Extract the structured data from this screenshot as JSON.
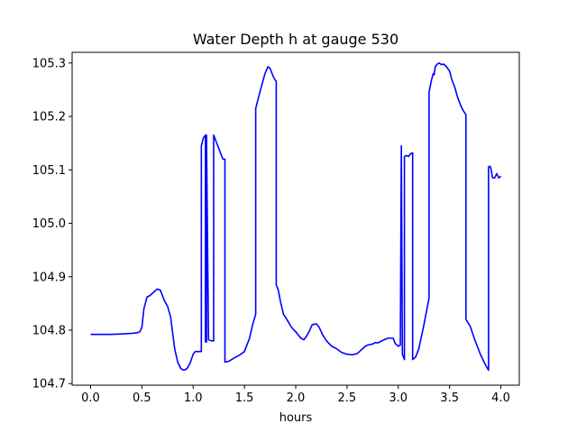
{
  "chart_data": {
    "type": "line",
    "title": "Water Depth h at gauge 530",
    "xlabel": "hours",
    "ylabel": "",
    "xlim": [
      -0.18,
      4.18
    ],
    "ylim": [
      104.697,
      105.32
    ],
    "x_ticks": [
      0.0,
      0.5,
      1.0,
      1.5,
      2.0,
      2.5,
      3.0,
      3.5,
      4.0
    ],
    "x_tick_labels": [
      "0.0",
      "0.5",
      "1.0",
      "1.5",
      "2.0",
      "2.5",
      "3.0",
      "3.5",
      "4.0"
    ],
    "y_ticks": [
      104.7,
      104.8,
      104.9,
      105.0,
      105.1,
      105.2,
      105.3
    ],
    "y_tick_labels": [
      "104.7",
      "104.8",
      "104.9",
      "105.0",
      "105.1",
      "105.2",
      "105.3"
    ],
    "grid": false,
    "legend": "none",
    "color": "#0000ff",
    "series": [
      {
        "x": [
          0.0,
          0.1,
          0.2,
          0.3,
          0.4,
          0.45,
          0.48,
          0.5,
          0.52,
          0.55,
          0.58,
          0.62,
          0.65,
          0.68,
          0.7,
          0.72,
          0.75,
          0.78,
          0.8,
          0.82,
          0.85,
          0.88,
          0.91,
          0.94,
          0.97,
          1.0,
          1.02,
          1.05,
          1.08,
          1.08,
          1.1,
          1.12,
          1.12,
          1.13,
          1.13,
          1.15,
          1.18,
          1.2,
          1.2,
          1.2,
          1.22,
          1.25,
          1.28,
          1.29,
          1.31,
          1.31,
          1.35,
          1.4,
          1.45,
          1.5,
          1.55,
          1.58,
          1.61,
          1.61,
          1.65,
          1.7,
          1.73,
          1.75,
          1.78,
          1.8,
          1.81,
          1.81,
          1.83,
          1.85,
          1.88,
          1.92,
          1.96,
          2.0,
          2.05,
          2.08,
          2.1,
          2.13,
          2.16,
          2.2,
          2.23,
          2.26,
          2.3,
          2.35,
          2.4,
          2.45,
          2.5,
          2.55,
          2.6,
          2.65,
          2.68,
          2.7,
          2.75,
          2.78,
          2.8,
          2.85,
          2.9,
          2.95,
          2.97,
          3.0,
          3.02,
          3.03,
          3.03,
          3.04,
          3.06,
          3.06,
          3.08,
          3.1,
          3.12,
          3.12,
          3.14,
          3.14,
          3.17,
          3.2,
          3.25,
          3.3,
          3.3,
          3.32,
          3.34,
          3.35,
          3.36,
          3.38,
          3.4,
          3.42,
          3.44,
          3.47,
          3.5,
          3.52,
          3.55,
          3.58,
          3.61,
          3.63,
          3.66,
          3.66,
          3.7,
          3.75,
          3.8,
          3.85,
          3.88,
          3.88,
          3.89,
          3.9,
          3.92,
          3.94,
          3.96,
          3.98,
          4.0
        ],
        "y": [
          104.792,
          104.792,
          104.792,
          104.793,
          104.794,
          104.795,
          104.797,
          104.805,
          104.84,
          104.862,
          104.865,
          104.872,
          104.877,
          104.875,
          104.865,
          104.855,
          104.845,
          104.825,
          104.795,
          104.765,
          104.74,
          104.728,
          104.725,
          104.728,
          104.738,
          104.755,
          104.76,
          104.76,
          104.76,
          105.145,
          105.16,
          105.165,
          104.778,
          104.778,
          105.165,
          104.782,
          104.78,
          104.78,
          104.78,
          105.165,
          105.155,
          105.14,
          105.125,
          105.12,
          105.12,
          104.74,
          104.742,
          104.748,
          104.753,
          104.76,
          104.785,
          104.81,
          104.83,
          105.215,
          105.245,
          105.28,
          105.293,
          105.29,
          105.275,
          105.268,
          105.266,
          104.885,
          104.875,
          104.855,
          104.83,
          104.818,
          104.805,
          104.797,
          104.785,
          104.782,
          104.787,
          104.797,
          104.81,
          104.812,
          104.805,
          104.792,
          104.78,
          104.77,
          104.765,
          104.758,
          104.755,
          104.754,
          104.756,
          104.765,
          104.77,
          104.772,
          104.774,
          104.777,
          104.776,
          104.781,
          104.785,
          104.785,
          104.775,
          104.77,
          104.772,
          105.145,
          105.14,
          104.755,
          104.745,
          105.125,
          105.127,
          105.125,
          105.13,
          105.13,
          105.132,
          104.745,
          104.75,
          104.765,
          104.81,
          104.86,
          105.245,
          105.265,
          105.28,
          105.278,
          105.293,
          105.298,
          105.3,
          105.297,
          105.298,
          105.293,
          105.285,
          105.27,
          105.255,
          105.235,
          105.22,
          105.212,
          105.203,
          104.82,
          104.808,
          104.78,
          104.755,
          104.735,
          104.725,
          105.105,
          105.107,
          105.105,
          105.085,
          105.085,
          105.093,
          105.085,
          105.088
        ]
      }
    ]
  }
}
